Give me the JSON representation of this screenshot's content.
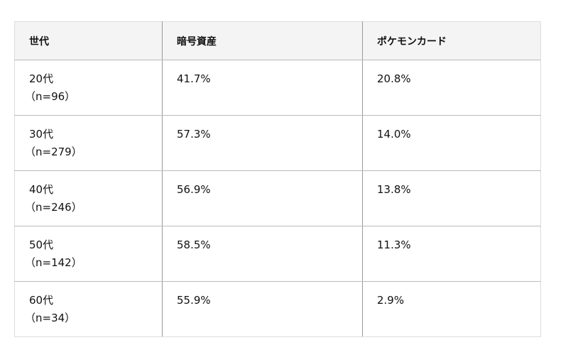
{
  "table": {
    "headers": [
      "世代",
      "暗号資産",
      "ポケモンカード"
    ],
    "rows": [
      {
        "age": "20代",
        "n": "（n=96）",
        "crypto": "41.7%",
        "pokemon": "20.8%"
      },
      {
        "age": "30代",
        "n": "（n=279）",
        "crypto": "57.3%",
        "pokemon": "14.0%"
      },
      {
        "age": "40代",
        "n": "（n=246）",
        "crypto": "56.9%",
        "pokemon": "13.8%"
      },
      {
        "age": "50代",
        "n": "（n=142）",
        "crypto": "58.5%",
        "pokemon": "11.3%"
      },
      {
        "age": "60代",
        "n": "（n=34）",
        "crypto": "55.9%",
        "pokemon": "2.9%"
      }
    ]
  }
}
